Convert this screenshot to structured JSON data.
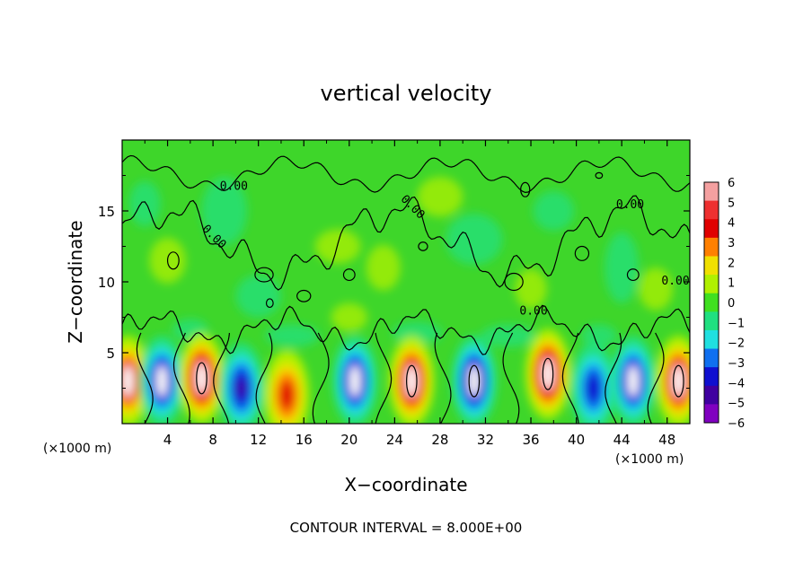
{
  "chart_data": {
    "type": "heatmap",
    "title": "vertical velocity",
    "xlabel": "X−coordinate",
    "ylabel": "Z−coordinate",
    "x_unit": "(×1000 m)",
    "z_unit": "(×1000 m)",
    "xlim": [
      0,
      50
    ],
    "ylim": [
      0,
      20
    ],
    "x_ticks": [
      "4",
      "8",
      "12",
      "16",
      "20",
      "24",
      "28",
      "32",
      "36",
      "40",
      "44",
      "48"
    ],
    "x_tick_values": [
      4,
      8,
      12,
      16,
      20,
      24,
      28,
      32,
      36,
      40,
      44,
      48
    ],
    "y_ticks": [
      "5",
      "10",
      "15"
    ],
    "y_tick_values": [
      5,
      10,
      15
    ],
    "colorbar": {
      "labels": [
        "6",
        "5",
        "4",
        "3",
        "2",
        "1",
        "0",
        "−1",
        "−2",
        "−3",
        "−4",
        "−5",
        "−6"
      ],
      "values": [
        6,
        5,
        4,
        3,
        2,
        1,
        0,
        -1,
        -2,
        -3,
        -4,
        -5,
        -6
      ],
      "colors": [
        "#f4a0a0",
        "#ee3030",
        "#e00000",
        "#ff8000",
        "#f0e000",
        "#b0f000",
        "#40e020",
        "#20e080",
        "#20e0e0",
        "#1070f0",
        "#1010d0",
        "#4000a0",
        "#8000c0"
      ]
    },
    "contour_labels": [
      "0.00",
      "0.00",
      "0.00",
      "0.00",
      "0.00",
      "0.00"
    ],
    "contour_interval_text": "CONTOUR INTERVAL = 8.000E+00",
    "cells": [
      {
        "x": 0.5,
        "z": 3.0,
        "w": 5.5
      },
      {
        "x": 3.5,
        "z": 3.0,
        "w": -5.5
      },
      {
        "x": 7.0,
        "z": 3.2,
        "w": 6.5
      },
      {
        "x": 10.5,
        "z": 2.5,
        "w": -5.0
      },
      {
        "x": 14.5,
        "z": 2.0,
        "w": 4.5
      },
      {
        "x": 20.5,
        "z": 3.0,
        "w": -5.5
      },
      {
        "x": 25.5,
        "z": 3.0,
        "w": 6.2
      },
      {
        "x": 31.0,
        "z": 3.0,
        "w": -6.0
      },
      {
        "x": 37.5,
        "z": 3.5,
        "w": 6.5
      },
      {
        "x": 41.5,
        "z": 2.5,
        "w": -4.5
      },
      {
        "x": 45.0,
        "z": 3.0,
        "w": -5.5
      },
      {
        "x": 49.0,
        "z": 3.0,
        "w": 6.0
      }
    ]
  }
}
